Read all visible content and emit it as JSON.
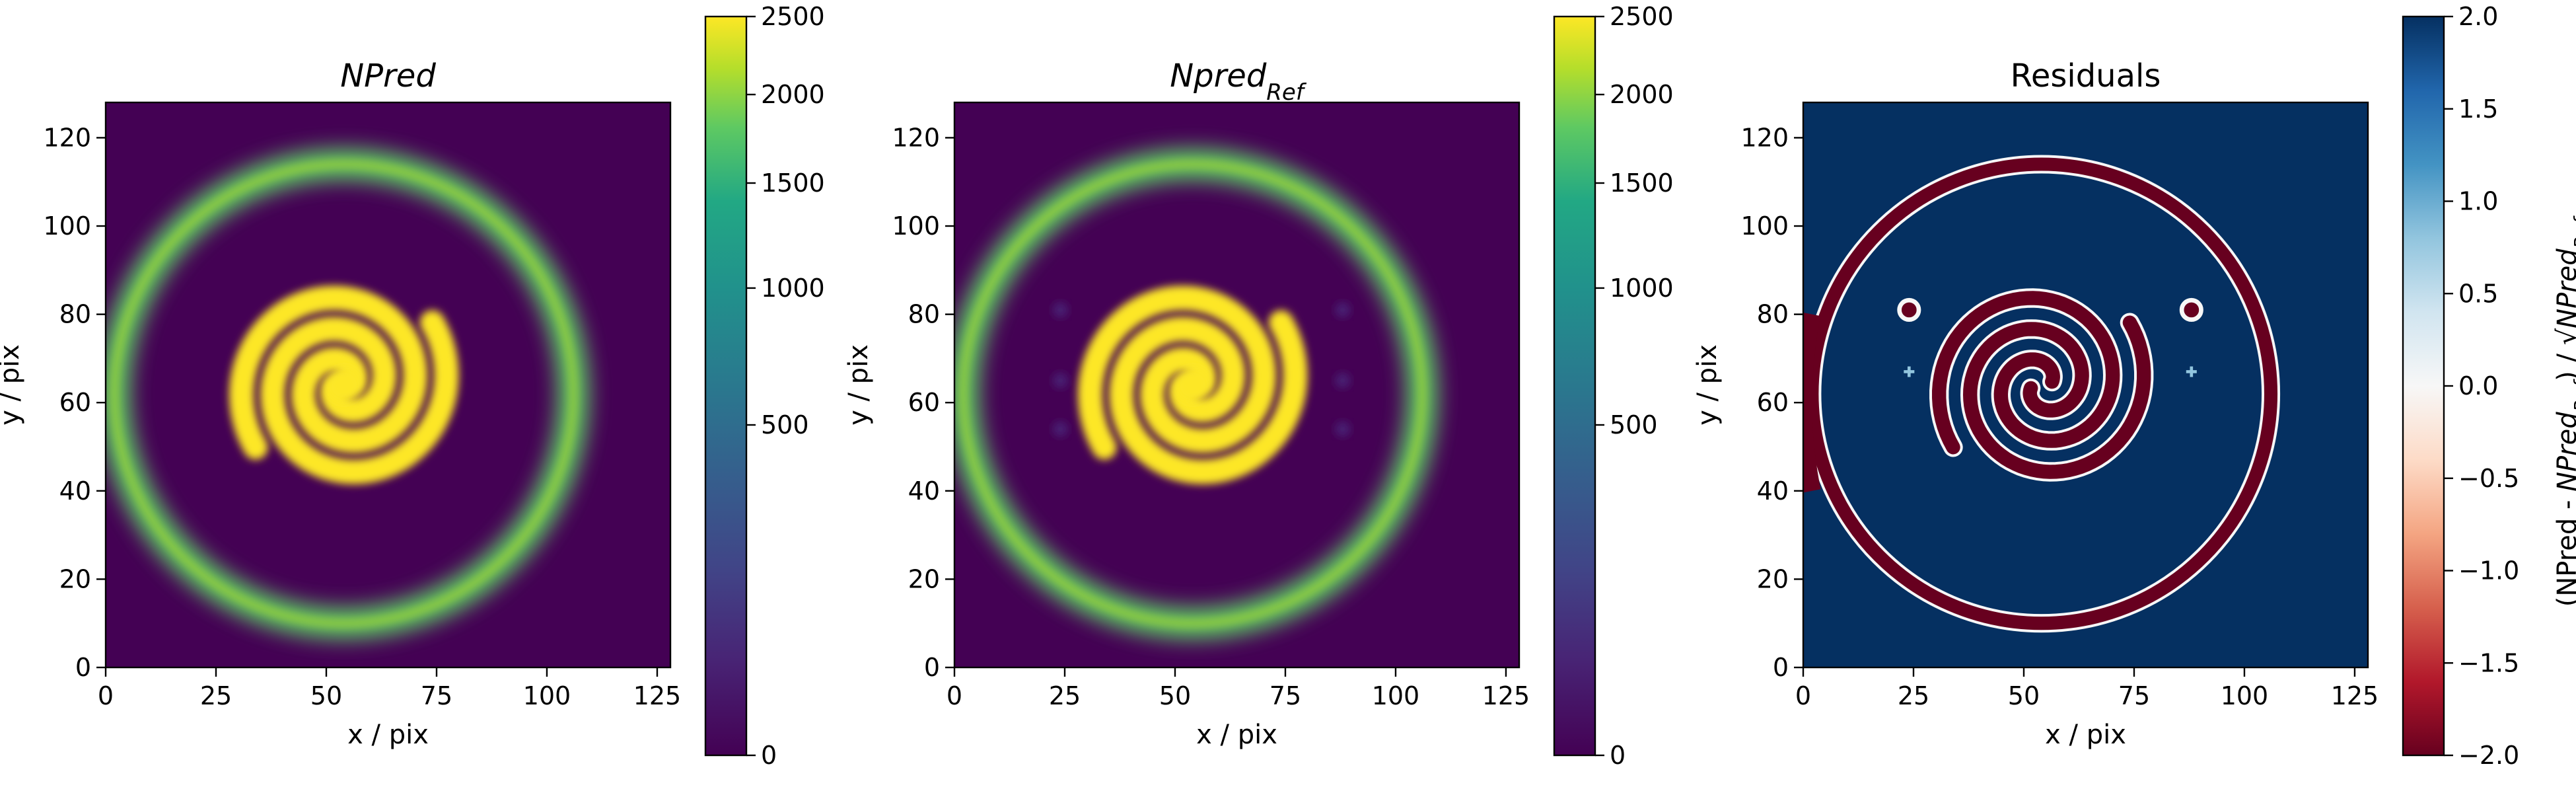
{
  "chart_data": [
    {
      "type": "heatmap",
      "title": "NPred",
      "xlabel": "x / pix",
      "ylabel": "y / pix",
      "xlim": [
        0,
        128
      ],
      "ylim": [
        0,
        128
      ],
      "xticks": [
        "0",
        "25",
        "50",
        "75",
        "100",
        "125"
      ],
      "yticks": [
        "0",
        "20",
        "40",
        "60",
        "80",
        "100",
        "120"
      ],
      "colormap": "viridis",
      "colorbar": {
        "range": [
          0,
          2500
        ],
        "scale": "sqrt",
        "ticks": [
          "0",
          "500",
          "1000",
          "1500",
          "2000",
          "2500"
        ]
      },
      "features": {
        "ring": {
          "center": [
            54,
            62
          ],
          "radius": 52,
          "peak": 1800
        },
        "spiral": {
          "center": [
            54,
            64
          ],
          "extent_radius": 22,
          "peak": 2500
        }
      }
    },
    {
      "type": "heatmap",
      "title": "Npred",
      "title_subscript": "Ref",
      "xlabel": "x / pix",
      "ylabel": "y / pix",
      "xlim": [
        0,
        128
      ],
      "ylim": [
        0,
        128
      ],
      "xticks": [
        "0",
        "25",
        "50",
        "75",
        "100",
        "125"
      ],
      "yticks": [
        "0",
        "20",
        "40",
        "60",
        "80",
        "100",
        "120"
      ],
      "colormap": "viridis",
      "colorbar": {
        "range": [
          0,
          2500
        ],
        "scale": "sqrt",
        "ticks": [
          "0",
          "500",
          "1000",
          "1500",
          "2000",
          "2500"
        ]
      },
      "features": {
        "ring": {
          "center": [
            54,
            62
          ],
          "radius": 52,
          "peak": 1800
        },
        "spiral": {
          "center": [
            54,
            64
          ],
          "extent_radius": 22,
          "peak": 2500
        },
        "faint_sources": [
          [
            24,
            81
          ],
          [
            88,
            81
          ],
          [
            24,
            65
          ],
          [
            88,
            65
          ],
          [
            24,
            54
          ],
          [
            88,
            54
          ]
        ]
      }
    },
    {
      "type": "heatmap",
      "title": "Residuals",
      "xlabel": "x / pix",
      "ylabel": "y / pix",
      "xlim": [
        0,
        128
      ],
      "ylim": [
        0,
        128
      ],
      "xticks": [
        "0",
        "25",
        "50",
        "75",
        "100",
        "125"
      ],
      "yticks": [
        "0",
        "20",
        "40",
        "60",
        "80",
        "100",
        "120"
      ],
      "colormap": "RdBu",
      "colorbar": {
        "range": [
          -2.0,
          2.0
        ],
        "ticks": [
          "2.0",
          "1.5",
          "1.0",
          "0.5",
          "0.0",
          "−0.5",
          "−1.0",
          "−1.5",
          "−2.0"
        ],
        "label_parts": [
          "(NPred - ",
          "NPred",
          "Ref",
          ") / √",
          "NPred",
          "Ref"
        ]
      },
      "background_value": 2.0,
      "features": {
        "ring": {
          "center": [
            54,
            62
          ],
          "radius": 52,
          "value": -2.0
        },
        "spiral": {
          "center": [
            54,
            64
          ],
          "extent_radius": 22,
          "value": -2.0
        },
        "point_sources": [
          [
            24,
            81
          ],
          [
            88,
            81
          ]
        ],
        "small_crosses": [
          [
            24,
            67
          ],
          [
            88,
            67
          ]
        ]
      }
    }
  ]
}
